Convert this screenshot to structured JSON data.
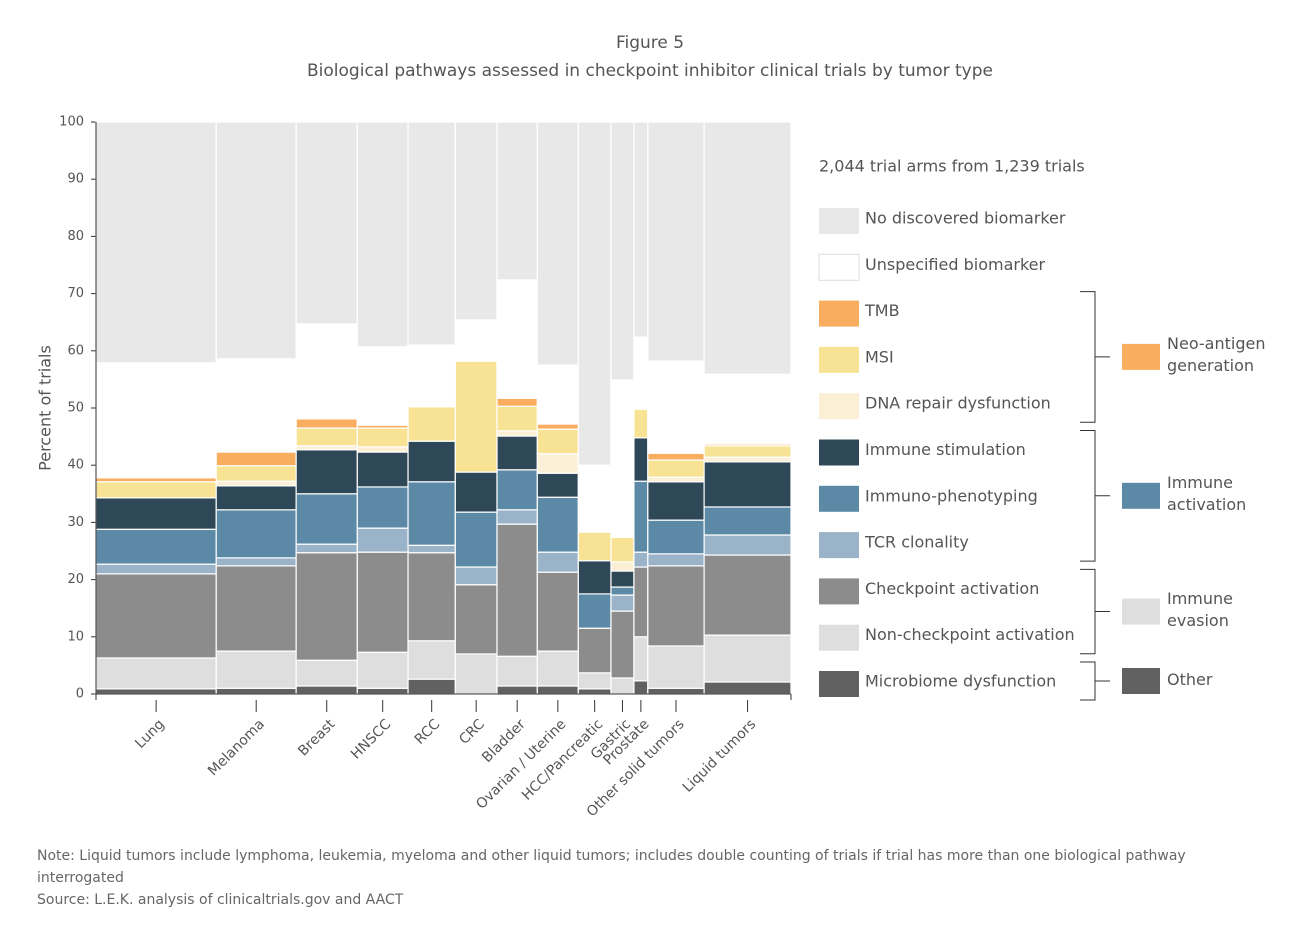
{
  "chart_data": {
    "type": "marimekko",
    "title": "Figure 5",
    "subtitle": "Biological pathways assessed in checkpoint inhibitor clinical trials by tumor type",
    "y_label": "Percent of trials",
    "legend_title": "2,044 trial arms from 1,239 trials",
    "categories": [
      "Lung",
      "Melanoma",
      "Breast",
      "HNSCC",
      "RCC",
      "CRC",
      "Bladder",
      "Ovarian / Uterine",
      "HCC/Pancreatic",
      "Gastric",
      "Prostate",
      "Other solid tumors",
      "Liquid tumors"
    ],
    "widths": [
      17.3,
      11.5,
      8.8,
      7.3,
      6.8,
      6.0,
      5.8,
      5.9,
      4.7,
      3.3,
      2.0,
      8.1,
      12.5
    ],
    "ylim": [
      0,
      100
    ],
    "yticks": [
      0,
      10,
      20,
      30,
      40,
      50,
      60,
      70,
      80,
      90,
      100
    ],
    "series": [
      {
        "name": "Microbiome dysfunction",
        "color": "#616161",
        "values": [
          0.9,
          1.0,
          1.4,
          1.0,
          2.6,
          0,
          1.4,
          1.4,
          0.9,
          0,
          2.3,
          1.0,
          2.1
        ]
      },
      {
        "name": "Non-checkpoint activation",
        "color": "#dedede",
        "values": [
          5.4,
          6.5,
          4.5,
          6.3,
          6.7,
          7.0,
          5.2,
          6.1,
          2.8,
          2.8,
          7.7,
          7.4,
          8.2
        ]
      },
      {
        "name": "Checkpoint activation",
        "color": "#8c8c8c",
        "values": [
          14.7,
          14.9,
          18.8,
          17.5,
          15.4,
          12.1,
          23.1,
          13.8,
          7.8,
          11.7,
          12.2,
          14.0,
          14.0
        ]
      },
      {
        "name": "TCR clonality",
        "color": "#9ab3c8",
        "values": [
          1.7,
          1.4,
          1.5,
          4.2,
          1.3,
          3.1,
          2.5,
          3.5,
          0,
          2.8,
          2.6,
          2.1,
          3.5
        ]
      },
      {
        "name": "Immuno-phenotyping",
        "color": "#5b89a6",
        "values": [
          6.1,
          8.4,
          8.8,
          7.2,
          11.1,
          9.6,
          7.0,
          9.6,
          6.0,
          1.4,
          12.4,
          5.9,
          4.9
        ]
      },
      {
        "name": "Immune stimulation",
        "color": "#2f4858",
        "values": [
          5.5,
          4.2,
          7.7,
          6.1,
          7.1,
          7.0,
          5.9,
          4.2,
          5.8,
          2.8,
          7.6,
          6.7,
          7.9
        ]
      },
      {
        "name": "DNA repair dysfunction",
        "color": "#fbefd5",
        "values": [
          0,
          0.8,
          0.7,
          0.9,
          0,
          0,
          0.9,
          3.4,
          0,
          1.6,
          0,
          0.8,
          0.8
        ]
      },
      {
        "name": "MSI",
        "color": "#f7e393",
        "values": [
          2.8,
          2.7,
          3.1,
          3.3,
          6.0,
          19.4,
          4.3,
          4.3,
          5.0,
          4.3,
          5.0,
          3.0,
          2.0
        ]
      },
      {
        "name": "TMB",
        "color": "#f9ae5f",
        "values": [
          0.7,
          2.4,
          1.6,
          0.5,
          0,
          0,
          1.4,
          0.9,
          0,
          0,
          0,
          1.2,
          0.3
        ]
      },
      {
        "name": "Unspecified biomarker",
        "color": "#ffffff",
        "values": [
          20.1,
          16.3,
          16.6,
          13.7,
          10.8,
          7.2,
          20.7,
          10.3,
          11.7,
          27.5,
          12.6,
          16.1,
          12.2
        ]
      },
      {
        "name": "No discovered biomarker",
        "color": "#e8e8e8",
        "values": [
          42.1,
          41.4,
          35.3,
          39.3,
          39.0,
          34.6,
          27.6,
          42.5,
          60.0,
          45.1,
          37.6,
          41.8,
          44.1
        ]
      }
    ],
    "groups": [
      {
        "name": "Neo-antigen generation",
        "color": "#f9ae5f"
      },
      {
        "name": "Immune activation",
        "color": "#5b89a6"
      },
      {
        "name": "Immune evasion",
        "color": "#dedede"
      },
      {
        "name": "Other",
        "color": "#616161"
      }
    ],
    "note": "Note: Liquid tumors include lymphoma, leukemia, myeloma and other liquid tumors; includes double counting of trials if trial has more than one biological pathway interrogated",
    "source": "Source: L.E.K. analysis of clinicaltrials.gov and AACT"
  }
}
